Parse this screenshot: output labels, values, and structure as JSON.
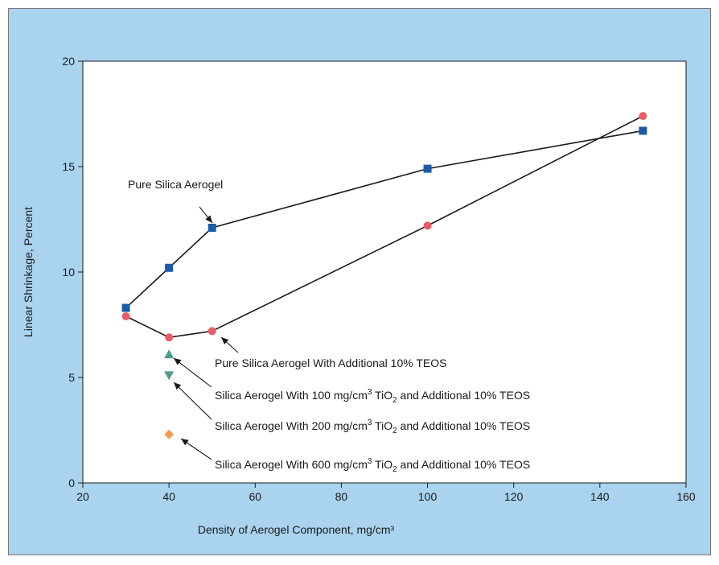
{
  "chart_data": {
    "type": "scatter",
    "title": "",
    "xlabel": "Density of Aerogel Component, mg/cm³",
    "ylabel": "Linear Shrinkage, Percent",
    "xlim": [
      20,
      160
    ],
    "ylim": [
      0,
      20
    ],
    "x_ticks": [
      20,
      40,
      60,
      80,
      100,
      120,
      140,
      160
    ],
    "y_ticks": [
      0,
      5,
      10,
      15,
      20
    ],
    "grid": false,
    "legend": "none (series identified by inline arrow annotations)",
    "series": [
      {
        "name": "Pure Silica Aerogel",
        "marker": "square",
        "connected": true,
        "color": "#1b5aa8",
        "x": [
          30,
          40,
          50,
          100,
          150
        ],
        "y": [
          8.3,
          10.2,
          12.1,
          14.9,
          16.7
        ]
      },
      {
        "name": "Pure Silica Aerogel With Additional 10% TEOS",
        "marker": "circle",
        "connected": true,
        "color": "#ea5b66",
        "x": [
          30,
          40,
          50,
          100,
          150
        ],
        "y": [
          7.9,
          6.9,
          7.2,
          12.2,
          17.4
        ]
      },
      {
        "name": "Silica Aerogel With 100 mg/cm³ TiO₂ and Additional 10% TEOS",
        "marker": "triangle-up",
        "connected": false,
        "color": "#4e9d8a",
        "x": [
          40
        ],
        "y": [
          6.1
        ]
      },
      {
        "name": "Silica Aerogel With 200 mg/cm³ TiO₂ and Additional 10% TEOS",
        "marker": "triangle-down",
        "connected": false,
        "color": "#4e9d8a",
        "x": [
          40
        ],
        "y": [
          5.1
        ]
      },
      {
        "name": "Silica Aerogel With 600 mg/cm³ TiO₂ and Additional 10% TEOS",
        "marker": "diamond",
        "connected": false,
        "color": "#f59a55",
        "x": [
          40
        ],
        "y": [
          2.3
        ]
      }
    ],
    "annotations": [
      {
        "series": 0,
        "point": 2,
        "text": "Pure Silica Aerogel"
      },
      {
        "series": 1,
        "point": 2,
        "text": "Pure Silica Aerogel With Additional 10% TEOS"
      },
      {
        "series": 2,
        "point": 0,
        "prefix": "Silica Aerogel With 100 mg/cm",
        "sup": "3",
        "mid": " TiO",
        "sub": "2",
        "suffix": " and Additional 10% TEOS"
      },
      {
        "series": 3,
        "point": 0,
        "prefix": "Silica Aerogel With 200 mg/cm",
        "sup": "3",
        "mid": " TiO",
        "sub": "2",
        "suffix": " and Additional 10% TEOS"
      },
      {
        "series": 4,
        "point": 0,
        "prefix": "Silica Aerogel With 600 mg/cm",
        "sup": "3",
        "mid": " TiO",
        "sub": "2",
        "suffix": " and Additional 10% TEOS"
      }
    ],
    "colors": {
      "background": "#a9d3ee",
      "plot_area": "#ffffff",
      "line": "#1a1a1a"
    }
  }
}
